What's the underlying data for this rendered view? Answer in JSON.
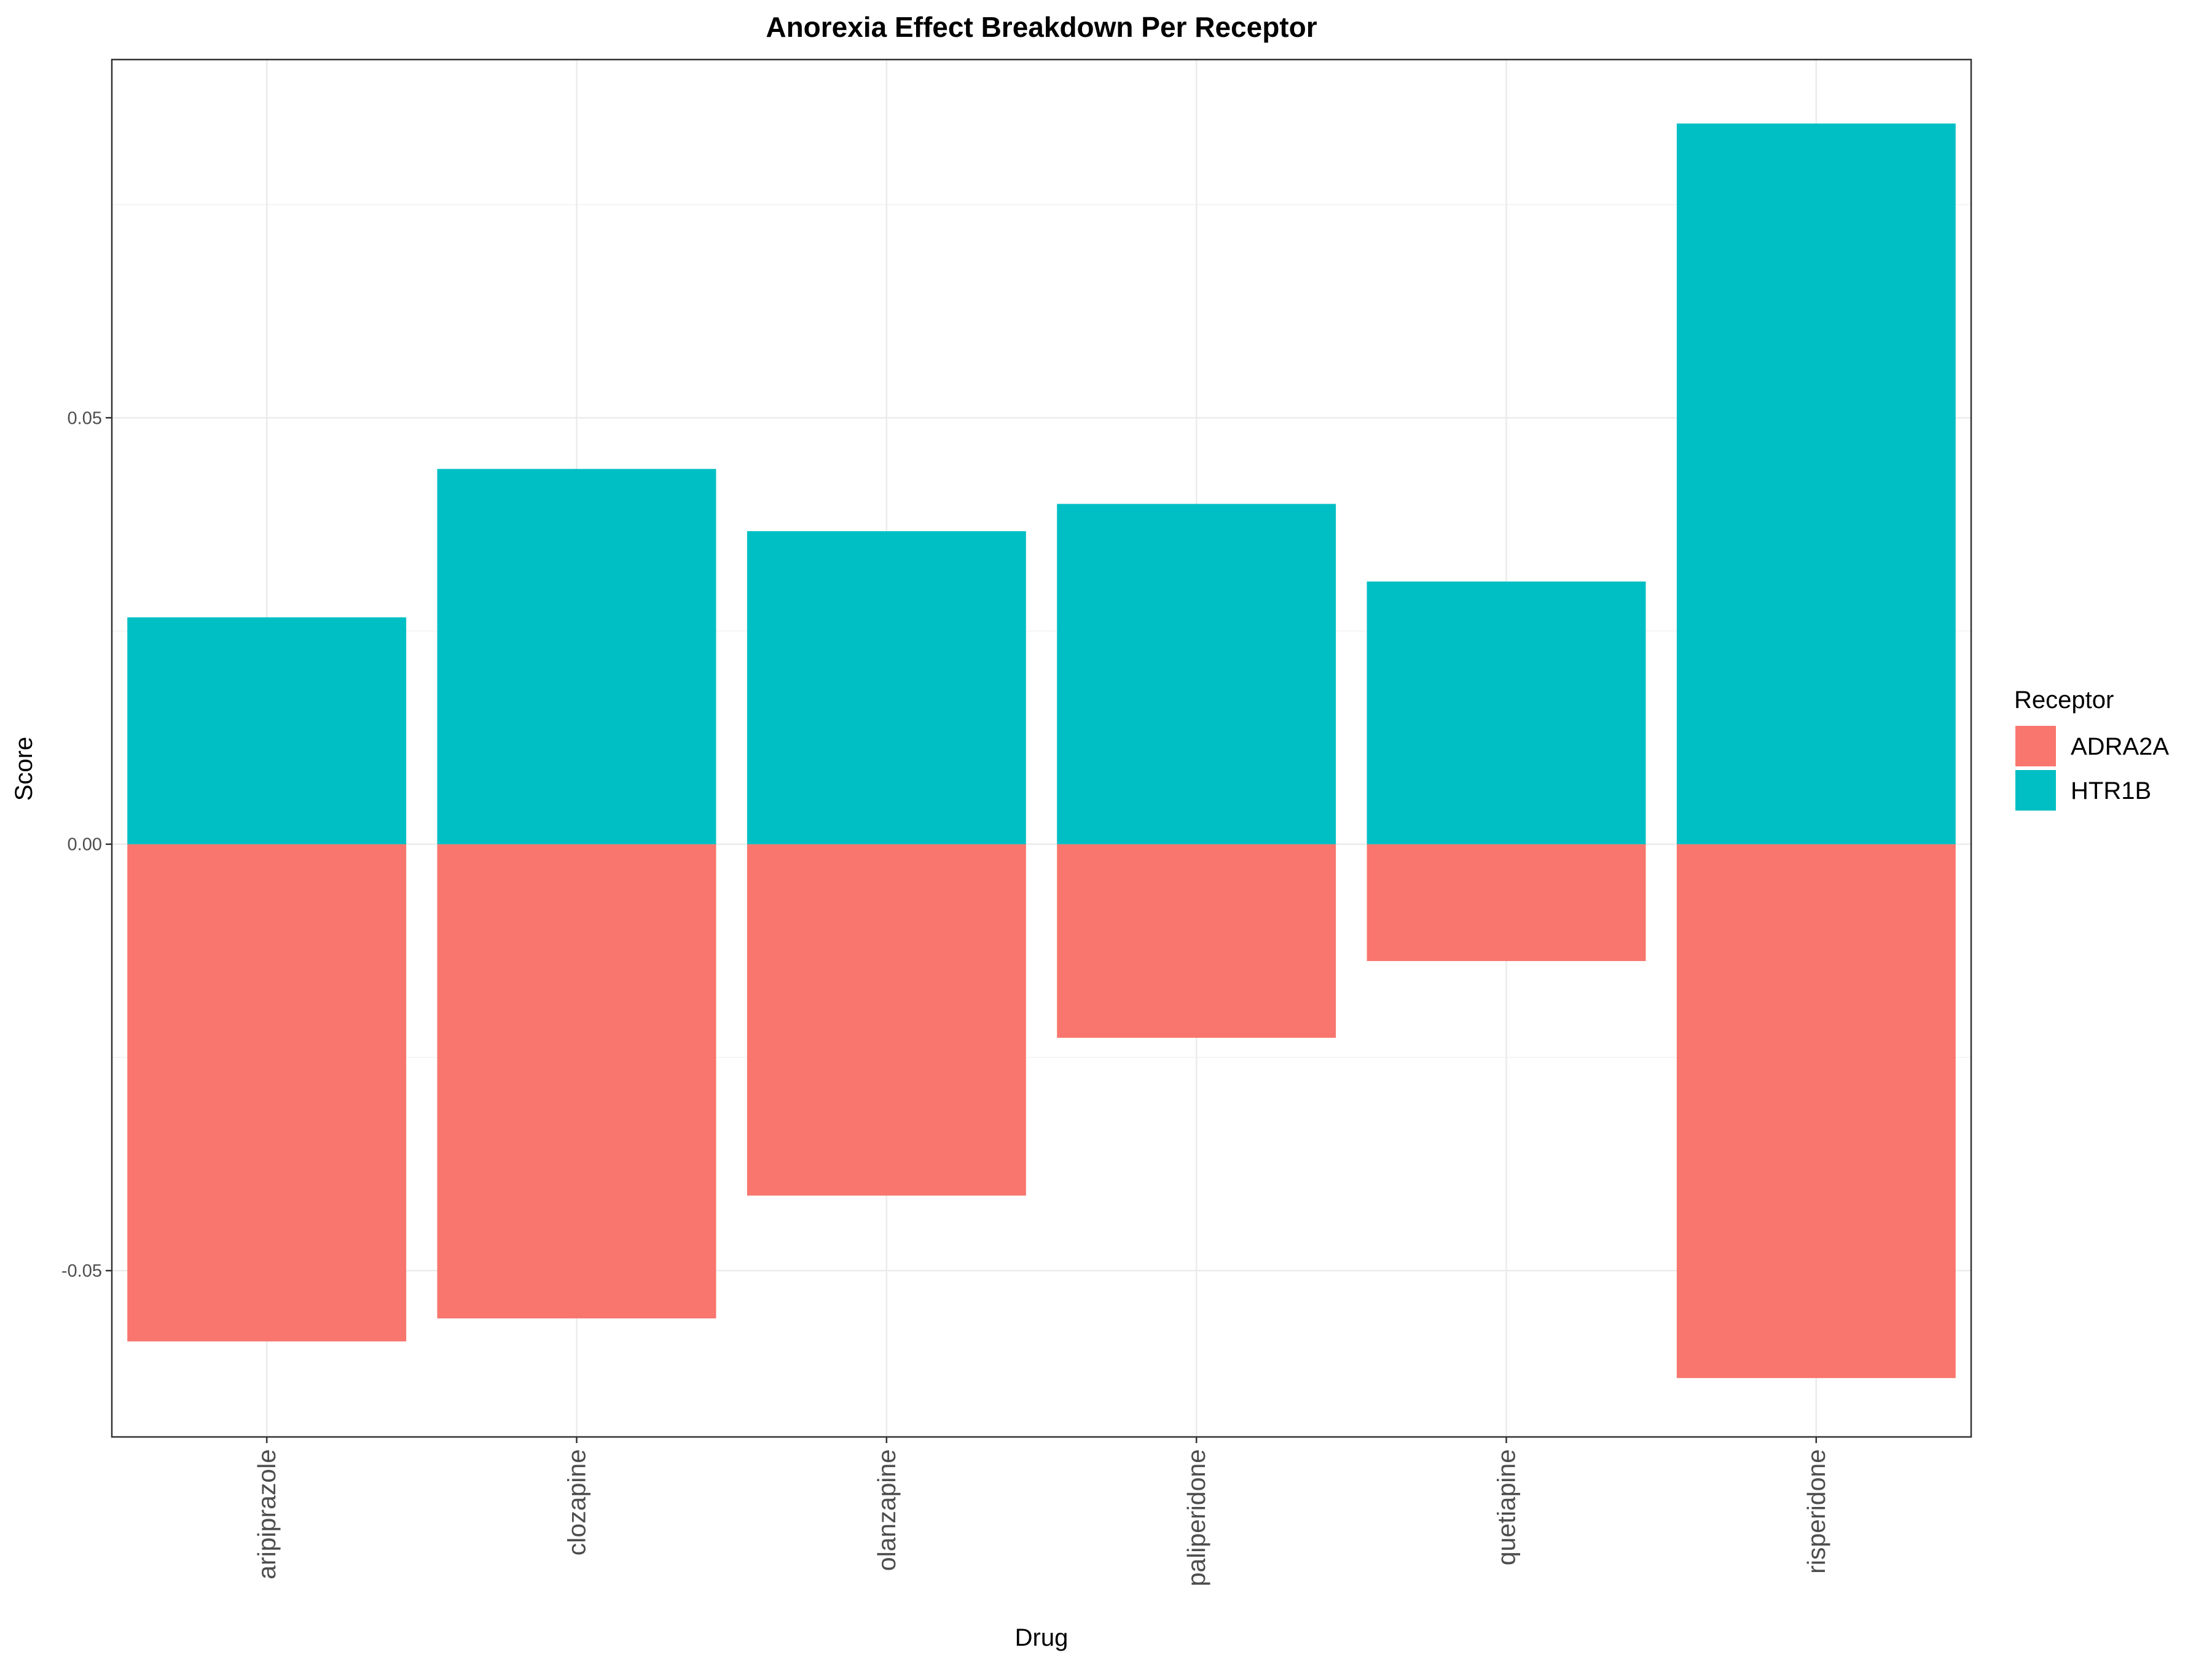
{
  "chart_data": {
    "type": "bar",
    "stacked": "diverging",
    "title": "Anorexia Effect Breakdown Per Receptor",
    "xlabel": "Drug",
    "ylabel": "Score",
    "categories": [
      "aripiprazole",
      "clozapine",
      "olanzapine",
      "paliperidone",
      "quetiapine",
      "risperidone"
    ],
    "series": [
      {
        "name": "ADRA2A",
        "color": "#F8766D",
        "values": [
          -0.0583,
          -0.0556,
          -0.0412,
          -0.0227,
          -0.0137,
          -0.0626
        ]
      },
      {
        "name": "HTR1B",
        "color": "#00BFC4",
        "values": [
          0.0266,
          0.044,
          0.0367,
          0.0399,
          0.0308,
          0.0845
        ]
      }
    ],
    "ylim": [
      -0.0695,
      0.092
    ],
    "yticks": [
      -0.05,
      0.0,
      0.05
    ],
    "ytick_labels": [
      "-0.05",
      "0.00",
      "0.05"
    ],
    "grid": true,
    "legend": {
      "title": "Receptor",
      "position": "right"
    }
  }
}
